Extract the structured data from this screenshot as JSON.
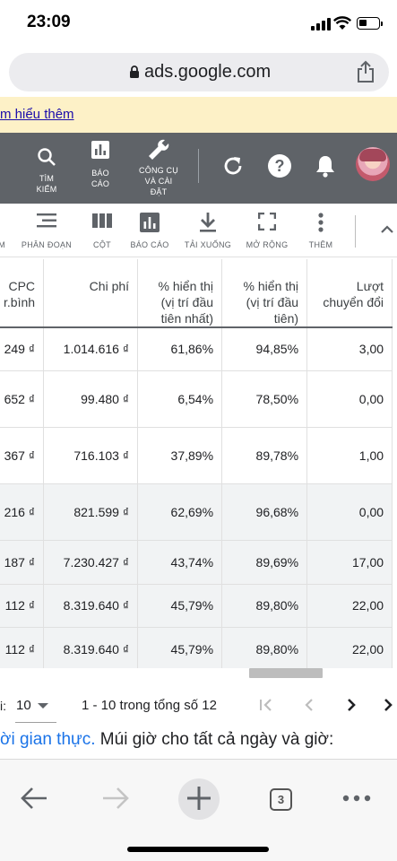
{
  "status_bar": {
    "time": "23:09"
  },
  "browser": {
    "url": "ads.google.com"
  },
  "banner": {
    "link_text": "m hiểu thêm"
  },
  "toolbar": {
    "items": [
      {
        "label_line1": "TÌM",
        "label_line2": "KIẾM",
        "label_line3": "",
        "icon": "search-icon"
      },
      {
        "label_line1": "BÁO",
        "label_line2": "CÁO",
        "label_line3": "",
        "icon": "reports-icon"
      },
      {
        "label_line1": "CÔNG CỤ",
        "label_line2": "VÀ CÀI",
        "label_line3": "ĐẶT",
        "icon": "wrench-icon"
      }
    ]
  },
  "actions": {
    "items": [
      {
        "label": "M",
        "icon": ""
      },
      {
        "label": "PHÂN ĐOẠN",
        "icon": "segment-icon"
      },
      {
        "label": "CỘT",
        "icon": "columns-icon"
      },
      {
        "label": "BÁO CÁO",
        "icon": "report-chart-icon"
      },
      {
        "label": "TẢI XUỐNG",
        "icon": "download-icon"
      },
      {
        "label": "MỞ RỘNG",
        "icon": "expand-icon"
      },
      {
        "label": "THÊM",
        "icon": "more-vert-icon"
      }
    ]
  },
  "table": {
    "headers": [
      {
        "line1": "CPC",
        "line2": "r.bình",
        "line3": ""
      },
      {
        "line1": "Chi phí",
        "line2": "",
        "line3": ""
      },
      {
        "line1": "% hiển thị",
        "line2": "(vị trí đầu",
        "line3": "tiên nhất)"
      },
      {
        "line1": "% hiển thị",
        "line2": "(vị trí đầu",
        "line3": "tiên)"
      },
      {
        "line1": "Lượt",
        "line2": "chuyển đổi",
        "line3": ""
      }
    ],
    "rows": [
      {
        "cpc": "249 ₫",
        "cost": "1.014.616 ₫",
        "abs_top": "61,86%",
        "top": "94,85%",
        "conv": "3,00"
      },
      {
        "cpc": "652 ₫",
        "cost": "99.480 ₫",
        "abs_top": "6,54%",
        "top": "78,50%",
        "conv": "0,00"
      },
      {
        "cpc": "367 ₫",
        "cost": "716.103 ₫",
        "abs_top": "37,89%",
        "top": "89,78%",
        "conv": "1,00"
      },
      {
        "cpc": "216 ₫",
        "cost": "821.599 ₫",
        "abs_top": "62,69%",
        "top": "96,68%",
        "conv": "0,00"
      },
      {
        "cpc": "187 ₫",
        "cost": "7.230.427 ₫",
        "abs_top": "43,74%",
        "top": "89,69%",
        "conv": "17,00"
      },
      {
        "cpc": "112 ₫",
        "cost": "8.319.640 ₫",
        "abs_top": "45,79%",
        "top": "89,80%",
        "conv": "22,00"
      },
      {
        "cpc": "112 ₫",
        "cost": "8.319.640 ₫",
        "abs_top": "45,79%",
        "top": "89,80%",
        "conv": "22,00"
      }
    ]
  },
  "pager": {
    "rows_label": "i:",
    "rows_value": "10",
    "info": "1 - 10 trong tổng số 12"
  },
  "below": {
    "link_text": "ời gian thực.",
    "text": " Múi giờ cho tất cả ngày và giờ:"
  },
  "nav": {
    "tab_count": "3"
  }
}
